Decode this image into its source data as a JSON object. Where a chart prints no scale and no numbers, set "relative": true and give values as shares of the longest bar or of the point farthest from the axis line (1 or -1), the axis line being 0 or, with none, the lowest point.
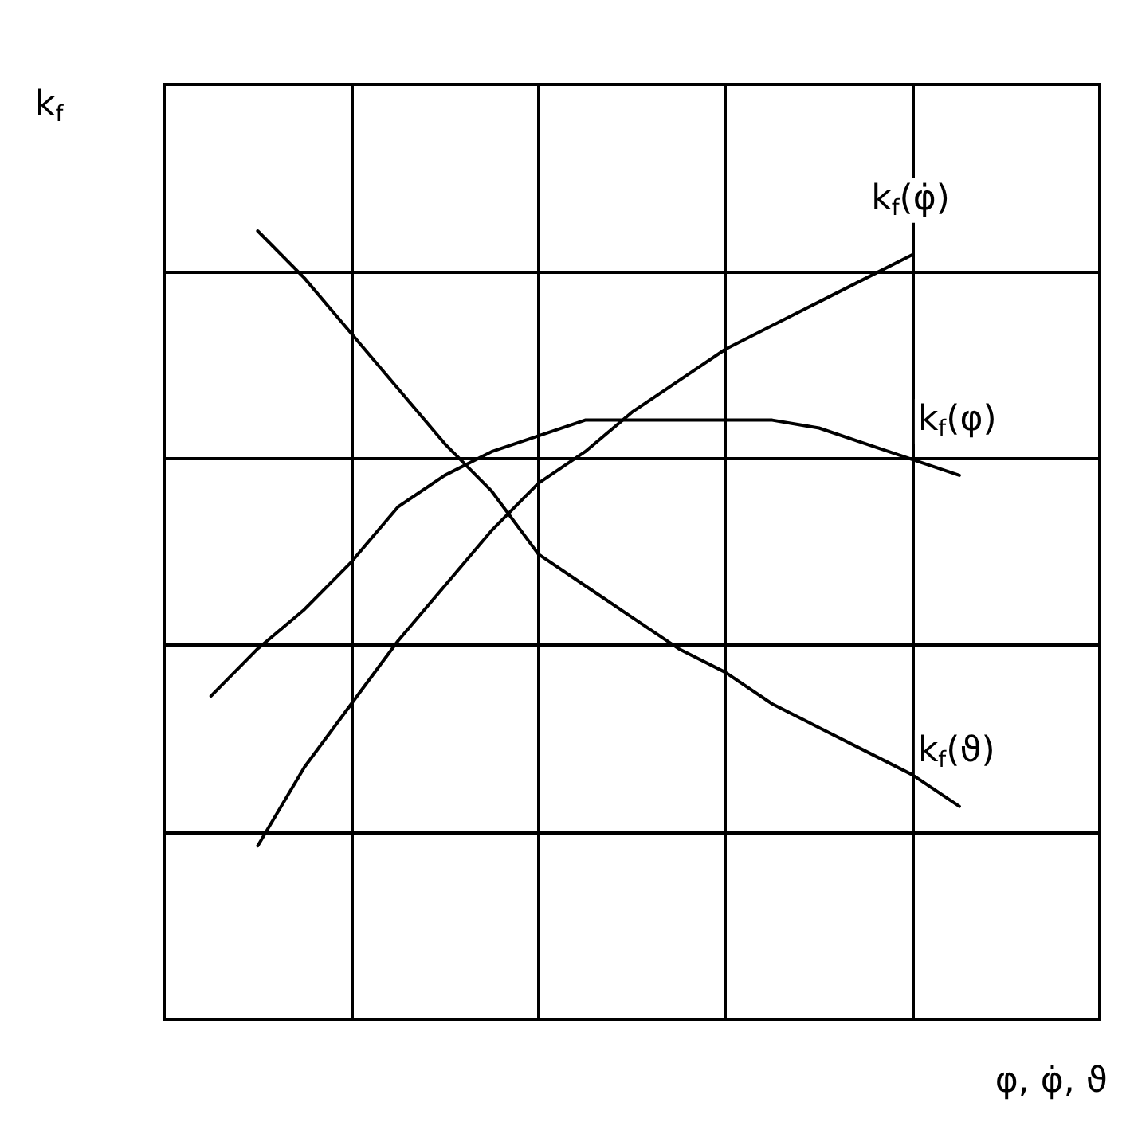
{
  "chart_data": {
    "type": "line",
    "relative": true,
    "xlabel": "φ, φ̇, ϑ",
    "ylabel": "k$_{f}$",
    "grid": true,
    "legend": false,
    "marker": "none",
    "line_style": "solid",
    "tick_labels": false,
    "categories": [
      null,
      null,
      null,
      null,
      null,
      null,
      null,
      null,
      null,
      null,
      null,
      null,
      null,
      null,
      null,
      null,
      null,
      null,
      null,
      null,
      null
    ],
    "series": [
      {
        "name": "k$_{f}$(φ̇)",
        "color": "#000000",
        "values": [
          null,
          null,
          0.22,
          0.32,
          0.4,
          0.48,
          0.55,
          0.62,
          0.68,
          0.72,
          0.77,
          0.81,
          0.85,
          0.88,
          0.91,
          0.94,
          0.97,
          null,
          null,
          null,
          null
        ]
      },
      {
        "name": "k$_{f}$(φ)",
        "color": "#000000",
        "values": [
          null,
          0.41,
          0.47,
          0.52,
          0.58,
          0.65,
          0.69,
          0.72,
          0.74,
          0.76,
          0.76,
          0.76,
          0.76,
          0.76,
          0.75,
          0.73,
          0.71,
          0.69,
          null,
          null,
          null
        ]
      },
      {
        "name": "k$_{f}$(ϑ)",
        "color": "#000000",
        "values": [
          null,
          null,
          1,
          0.94,
          0.87,
          0.8,
          0.73,
          0.67,
          0.59,
          0.55,
          0.51,
          0.47,
          0.44,
          0.4,
          0.37,
          0.34,
          0.31,
          0.27,
          null,
          null,
          null
        ]
      }
    ]
  }
}
